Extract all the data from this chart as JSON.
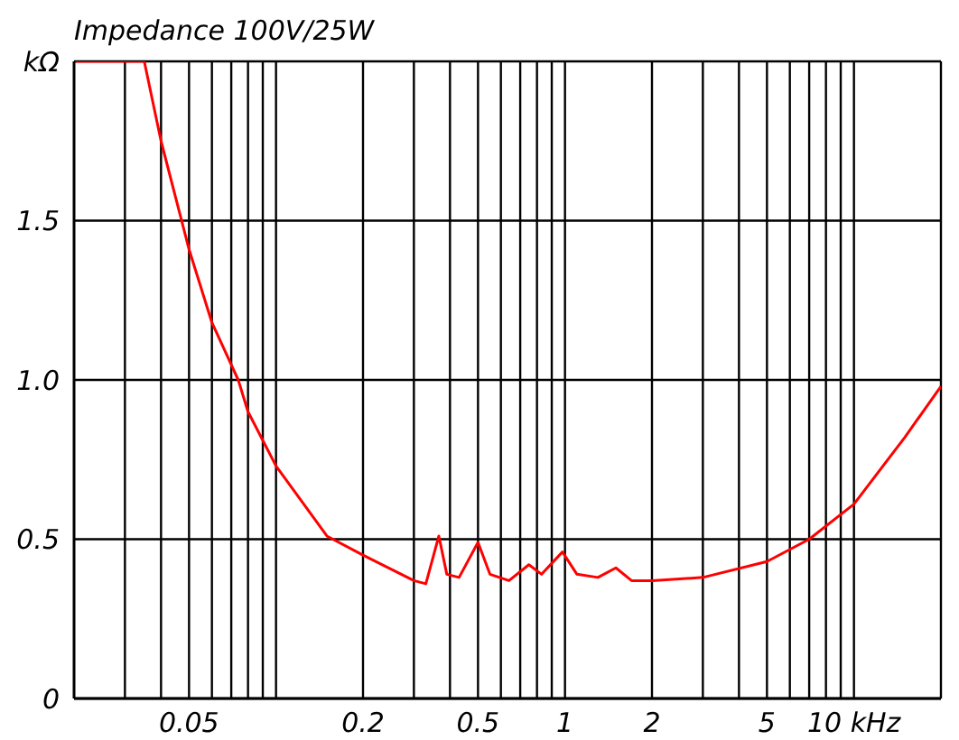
{
  "chart_data": {
    "type": "line",
    "title": "Impedance 100V/25W",
    "x": [
      0.02,
      0.035,
      0.04,
      0.05,
      0.06,
      0.074,
      0.08,
      0.1,
      0.15,
      0.2,
      0.3,
      0.33,
      0.366,
      0.39,
      0.43,
      0.5,
      0.55,
      0.64,
      0.75,
      0.83,
      0.98,
      1.1,
      1.3,
      1.5,
      1.7,
      2,
      3,
      5,
      7,
      10,
      15,
      20
    ],
    "series": [
      {
        "color": "#ff0000",
        "values": [
          2,
          2,
          1.75,
          1.41,
          1.18,
          1.0,
          0.9,
          0.73,
          0.51,
          0.45,
          0.37,
          0.36,
          0.51,
          0.39,
          0.38,
          0.49,
          0.39,
          0.37,
          0.42,
          0.39,
          0.46,
          0.39,
          0.38,
          0.41,
          0.37,
          0.37,
          0.38,
          0.43,
          0.5,
          0.61,
          0.82,
          0.98
        ]
      }
    ],
    "log": "x",
    "xlim": [
      0.02,
      20
    ],
    "ylim": [
      0,
      2
    ],
    "xticks": [
      {
        "value": 0.03,
        "label": null
      },
      {
        "value": 0.04,
        "label": null
      },
      0.05,
      {
        "value": 0.06,
        "label": null
      },
      {
        "value": 0.07,
        "label": null
      },
      {
        "value": 0.08,
        "label": null
      },
      {
        "value": 0.09,
        "label": null
      },
      {
        "value": 0.1,
        "label": null
      },
      0.2,
      {
        "value": 0.3,
        "label": null
      },
      {
        "value": 0.4,
        "label": null
      },
      0.5,
      {
        "value": 0.6,
        "label": null
      },
      {
        "value": 0.7,
        "label": null
      },
      {
        "value": 0.8,
        "label": null
      },
      {
        "value": 0.9,
        "label": null
      },
      1,
      2,
      {
        "value": 3,
        "label": null
      },
      {
        "value": 4,
        "label": null
      },
      5,
      {
        "value": 6,
        "label": null
      },
      {
        "value": 7,
        "label": null
      },
      {
        "value": 8,
        "label": null
      },
      {
        "value": 9,
        "label": null
      },
      {
        "value": 10,
        "label": "10 kHz"
      },
      {
        "value": 20,
        "label": null
      }
    ],
    "yticks": [
      0,
      0.5,
      {
        "value": 1,
        "label": "1.0"
      },
      1.5,
      {
        "value": 2,
        "label": "kΩ"
      }
    ],
    "grid": true,
    "marker": "none",
    "line_style": "solid",
    "legend": false
  }
}
